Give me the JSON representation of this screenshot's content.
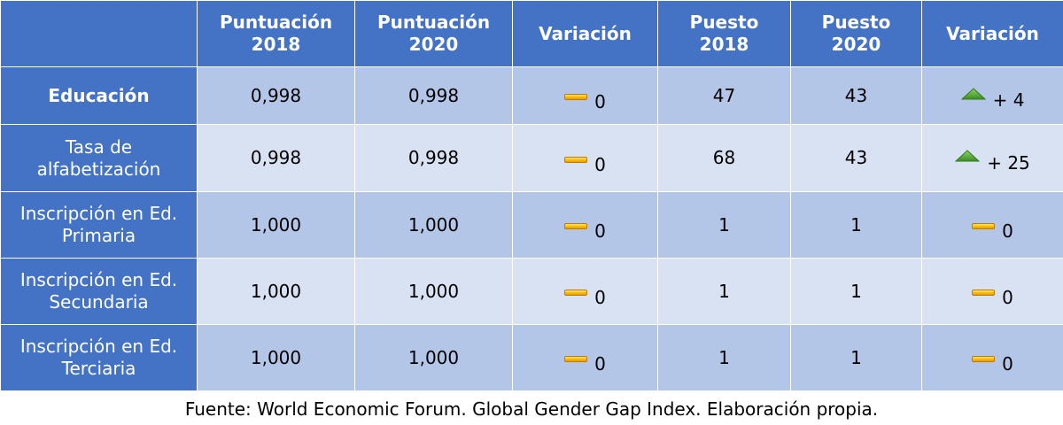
{
  "table": {
    "headers": [
      "",
      "Puntuación 2018",
      "Puntuación 2020",
      "Variación",
      "Puesto 2018",
      "Puesto 2020",
      "Variación"
    ],
    "rows": [
      {
        "label": "Educación",
        "score_2018": "0,998",
        "score_2020": "0,998",
        "score_change": {
          "indicator": "dash-icon",
          "text": "0"
        },
        "rank_2018": "47",
        "rank_2020": "43",
        "rank_change": {
          "indicator": "up-arrow-icon",
          "text": "+ 4"
        }
      },
      {
        "label": "Tasa de alfabetización",
        "score_2018": "0,998",
        "score_2020": "0,998",
        "score_change": {
          "indicator": "dash-icon",
          "text": "0"
        },
        "rank_2018": "68",
        "rank_2020": "43",
        "rank_change": {
          "indicator": "up-arrow-icon",
          "text": "+ 25"
        }
      },
      {
        "label": "Inscripción en Ed. Primaria",
        "score_2018": "1,000",
        "score_2020": "1,000",
        "score_change": {
          "indicator": "dash-icon",
          "text": "0"
        },
        "rank_2018": "1",
        "rank_2020": "1",
        "rank_change": {
          "indicator": "dash-icon",
          "text": "0"
        }
      },
      {
        "label": "Inscripción en Ed. Secundaria",
        "score_2018": "1,000",
        "score_2020": "1,000",
        "score_change": {
          "indicator": "dash-icon",
          "text": "0"
        },
        "rank_2018": "1",
        "rank_2020": "1",
        "rank_change": {
          "indicator": "dash-icon",
          "text": "0"
        }
      },
      {
        "label": "Inscripción en Ed. Terciaria",
        "score_2018": "1,000",
        "score_2020": "1,000",
        "score_change": {
          "indicator": "dash-icon",
          "text": "0"
        },
        "rank_2018": "1",
        "rank_2020": "1",
        "rank_change": {
          "indicator": "dash-icon",
          "text": "0"
        }
      }
    ]
  },
  "source": "Fuente: World Economic Forum. Global Gender Gap Index. Elaboración propia.",
  "colors": {
    "header_bg": "#4472c4",
    "row_odd_bg": "#b4c6e7",
    "row_even_bg": "#d9e2f3",
    "dash_indicator": "#ffc000",
    "up_indicator": "#4ea72e"
  }
}
